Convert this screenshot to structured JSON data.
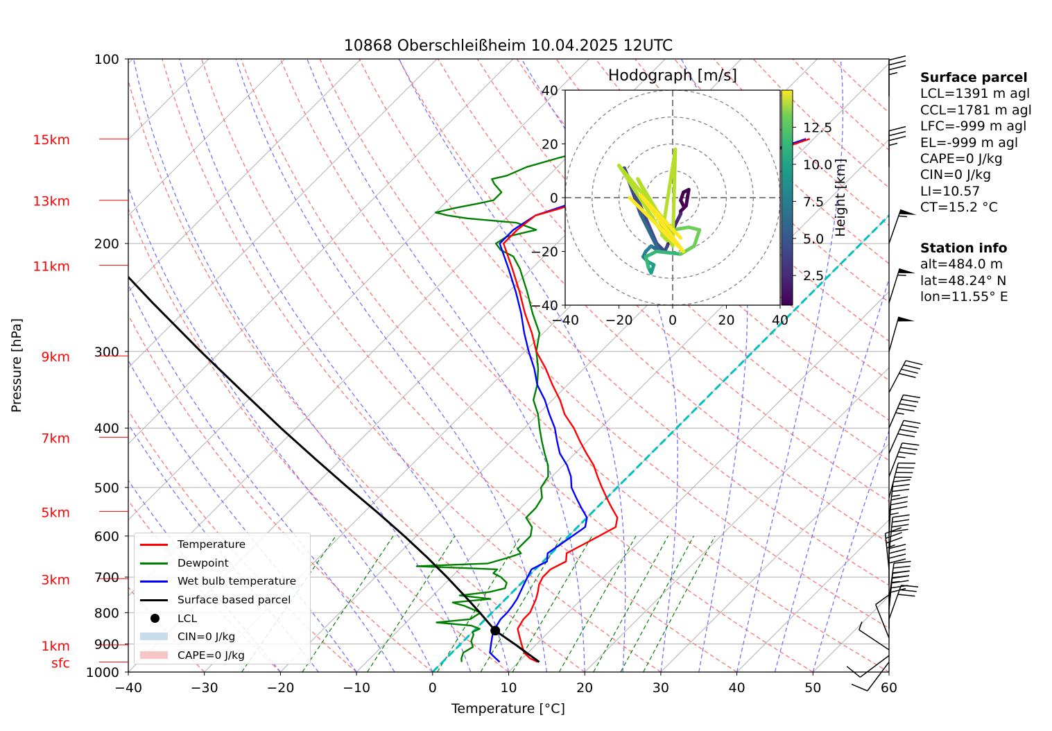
{
  "title": "10868 Oberschleißheim 10.04.2025 12UTC",
  "xlabel": "Temperature [°C]",
  "ylabel": "Pressure [hPa]",
  "colors": {
    "temperature": "#ff0000",
    "dewpoint": "#008000",
    "wetbulb": "#0000ff",
    "parcel": "#000000",
    "height_labels": "#ff0000",
    "dry_adiabat": "#ff7070",
    "moist_adiabat": "#7070ff",
    "mixing_ratio": "#008000",
    "freezing_line": "#00c0c0",
    "cin": "#c8dcea",
    "cape": "#f6c6c6"
  },
  "height_labels": [
    {
      "label": "15km",
      "p": 135
    },
    {
      "label": "13km",
      "p": 170
    },
    {
      "label": "11km",
      "p": 217
    },
    {
      "label": "9km",
      "p": 305
    },
    {
      "label": "7km",
      "p": 414
    },
    {
      "label": "5km",
      "p": 547
    },
    {
      "label": "3km",
      "p": 704
    },
    {
      "label": "1km",
      "p": 903
    },
    {
      "label": "sfc",
      "p": 963
    }
  ],
  "legend": {
    "temperature": "Temperature",
    "dewpoint": "Dewpoint",
    "wetbulb": "Wet bulb temperature",
    "parcel": "Surface based parcel",
    "lcl": "LCL",
    "cin": "CIN=0 J/kg",
    "cape": "CAPE=0 J/kg"
  },
  "surface_parcel": {
    "heading": "Surface parcel",
    "lines": [
      "LCL=1391 m agl",
      "CCL=1781 m agl",
      "LFC=-999 m agl",
      "EL=-999 m agl",
      "CAPE=0 J/kg",
      "CIN=0 J/kg",
      "LI=10.57",
      "CT=15.2 °C"
    ]
  },
  "station_info": {
    "heading": "Station info",
    "lines": [
      "alt=484.0 m",
      "lat=48.24° N",
      "lon=11.55° E"
    ]
  },
  "hodograph": {
    "title": "Hodograph [m/s]",
    "colorbar_label": "Height [km]",
    "colorbar_ticks": [
      "2.5",
      "5.0",
      "7.5",
      "10.0",
      "12.5"
    ],
    "range": [
      -40,
      40
    ],
    "ticks": [
      "−40",
      "−20",
      "0",
      "20",
      "40"
    ],
    "colormap": "viridis"
  },
  "chart_data": {
    "type": "line",
    "title": "10868 Oberschleißheim 10.04.2025 12UTC",
    "xlabel": "Temperature [°C]",
    "ylabel": "Pressure [hPa]",
    "xlim": [
      -40,
      60
    ],
    "ylim": [
      1000,
      100
    ],
    "y_scale": "log",
    "skew": "temperature isotherms skewed 45°",
    "x_ticks": [
      "−40",
      "−30",
      "−20",
      "−10",
      "0",
      "10",
      "20",
      "30",
      "40",
      "50",
      "60"
    ],
    "y_ticks": [
      "100",
      "200",
      "300",
      "400",
      "500",
      "600",
      "700",
      "800",
      "900",
      "1000"
    ],
    "legend_position": "lower-left",
    "series": [
      {
        "name": "Temperature",
        "color": "#ff0000",
        "points": [
          [
            963,
            12.5
          ],
          [
            950,
            11
          ],
          [
            930,
            9.5
          ],
          [
            900,
            8
          ],
          [
            870,
            6.5
          ],
          [
            850,
            5.5
          ],
          [
            820,
            5
          ],
          [
            800,
            5
          ],
          [
            780,
            4.5
          ],
          [
            760,
            4
          ],
          [
            740,
            3.3
          ],
          [
            720,
            2.5
          ],
          [
            700,
            2
          ],
          [
            680,
            2
          ],
          [
            660,
            3
          ],
          [
            640,
            2
          ],
          [
            620,
            3
          ],
          [
            600,
            4
          ],
          [
            580,
            5
          ],
          [
            560,
            4
          ],
          [
            540,
            2
          ],
          [
            520,
            0
          ],
          [
            500,
            -2
          ],
          [
            480,
            -4
          ],
          [
            460,
            -6
          ],
          [
            440,
            -8.5
          ],
          [
            420,
            -11
          ],
          [
            400,
            -13.5
          ],
          [
            380,
            -16.5
          ],
          [
            360,
            -19
          ],
          [
            340,
            -22
          ],
          [
            320,
            -25
          ],
          [
            300,
            -28.5
          ],
          [
            280,
            -31.5
          ],
          [
            260,
            -35
          ],
          [
            240,
            -38.5
          ],
          [
            220,
            -42.5
          ],
          [
            200,
            -47
          ],
          [
            190,
            -47
          ],
          [
            180,
            -46.5
          ],
          [
            175,
            -44
          ],
          [
            170,
            -42
          ],
          [
            165,
            -39
          ],
          [
            160,
            -38
          ],
          [
            155,
            -34
          ],
          [
            150,
            -32
          ],
          [
            145,
            -27
          ],
          [
            140,
            -23
          ],
          [
            136,
            -21
          ],
          [
            135,
            -20.5
          ]
        ]
      },
      {
        "name": "Dewpoint",
        "color": "#008000",
        "points": [
          [
            963,
            2.5
          ],
          [
            950,
            2
          ],
          [
            930,
            1.5
          ],
          [
            910,
            2
          ],
          [
            890,
            1
          ],
          [
            870,
            0.5
          ],
          [
            860,
            0
          ],
          [
            850,
            0.5
          ],
          [
            840,
            -1
          ],
          [
            830,
            -6
          ],
          [
            820,
            -2
          ],
          [
            800,
            -1.5
          ],
          [
            790,
            -3
          ],
          [
            780,
            -4.5
          ],
          [
            770,
            -6.5
          ],
          [
            760,
            -2
          ],
          [
            750,
            -6.5
          ],
          [
            740,
            -3
          ],
          [
            730,
            -1.5
          ],
          [
            715,
            -2
          ],
          [
            700,
            -3.5
          ],
          [
            690,
            -5
          ],
          [
            680,
            -5
          ],
          [
            672,
            -16
          ],
          [
            665,
            -7
          ],
          [
            650,
            -5
          ],
          [
            640,
            -4
          ],
          [
            630,
            -5
          ],
          [
            620,
            -5
          ],
          [
            600,
            -5
          ],
          [
            580,
            -6
          ],
          [
            560,
            -8
          ],
          [
            540,
            -8
          ],
          [
            520,
            -8.5
          ],
          [
            500,
            -10
          ],
          [
            480,
            -10.5
          ],
          [
            460,
            -12
          ],
          [
            440,
            -14
          ],
          [
            420,
            -16
          ],
          [
            400,
            -18
          ],
          [
            380,
            -20
          ],
          [
            360,
            -22.5
          ],
          [
            340,
            -24
          ],
          [
            320,
            -26
          ],
          [
            300,
            -28.5
          ],
          [
            280,
            -30.5
          ],
          [
            260,
            -34
          ],
          [
            240,
            -37.5
          ],
          [
            220,
            -41.5
          ],
          [
            210,
            -44
          ],
          [
            205,
            -46.5
          ],
          [
            200,
            -48
          ],
          [
            195,
            -47.5
          ],
          [
            190,
            -44.5
          ],
          [
            185,
            -48
          ],
          [
            182,
            -55
          ],
          [
            180,
            -58
          ],
          [
            178,
            -60
          ],
          [
            175,
            -58
          ],
          [
            172,
            -55.5
          ],
          [
            170,
            -54
          ],
          [
            165,
            -54
          ],
          [
            160,
            -56
          ],
          [
            157,
            -57
          ],
          [
            155,
            -55.5
          ],
          [
            150,
            -54
          ],
          [
            145,
            -51
          ],
          [
            140,
            -47.5
          ],
          [
            135,
            -45
          ]
        ]
      },
      {
        "name": "Wet bulb temperature",
        "color": "#0000ff",
        "points": [
          [
            963,
            7.5
          ],
          [
            950,
            6.5
          ],
          [
            930,
            5
          ],
          [
            900,
            4
          ],
          [
            870,
            3
          ],
          [
            850,
            2.5
          ],
          [
            820,
            2
          ],
          [
            800,
            2
          ],
          [
            780,
            1.8
          ],
          [
            760,
            1.5
          ],
          [
            740,
            1
          ],
          [
            720,
            0.5
          ],
          [
            700,
            0
          ],
          [
            680,
            -0.5
          ],
          [
            660,
            0.5
          ],
          [
            640,
            -0.5
          ],
          [
            620,
            0
          ],
          [
            600,
            0.5
          ],
          [
            580,
            1
          ],
          [
            560,
            0
          ],
          [
            540,
            -2
          ],
          [
            520,
            -4
          ],
          [
            500,
            -6
          ],
          [
            480,
            -7.5
          ],
          [
            460,
            -9.5
          ],
          [
            440,
            -12
          ],
          [
            420,
            -14
          ],
          [
            400,
            -16
          ],
          [
            380,
            -18.5
          ],
          [
            360,
            -21
          ],
          [
            340,
            -24
          ],
          [
            320,
            -26.5
          ],
          [
            300,
            -29.5
          ],
          [
            280,
            -32.5
          ],
          [
            260,
            -35.5
          ],
          [
            240,
            -39
          ],
          [
            220,
            -43
          ],
          [
            200,
            -47.5
          ],
          [
            190,
            -47.5
          ],
          [
            180,
            -46.5
          ],
          [
            175,
            -44.5
          ],
          [
            170,
            -42.5
          ],
          [
            165,
            -39.5
          ],
          [
            160,
            -38.5
          ],
          [
            155,
            -34.5
          ],
          [
            150,
            -32.5
          ],
          [
            145,
            -27.5
          ],
          [
            140,
            -23.5
          ],
          [
            136,
            -21.5
          ],
          [
            135,
            -21
          ]
        ]
      },
      {
        "name": "Surface based parcel",
        "color": "#000000",
        "points": [
          [
            963,
            12.7
          ],
          [
            900,
            7.1
          ],
          [
            856,
            2.8
          ],
          [
            800,
            -1.6
          ],
          [
            750,
            -5.9
          ],
          [
            700,
            -10.6
          ],
          [
            650,
            -15.8
          ],
          [
            600,
            -21.6
          ],
          [
            550,
            -28.1
          ],
          [
            500,
            -35.4
          ],
          [
            450,
            -43.3
          ],
          [
            400,
            -52
          ],
          [
            350,
            -61.6
          ],
          [
            300,
            -72.6
          ],
          [
            250,
            -85.3
          ],
          [
            200,
            -100.5
          ],
          [
            170,
            -111
          ]
        ]
      }
    ],
    "lcl": {
      "p": 856,
      "t": 2.8
    },
    "freezing_line": {
      "t": 0
    },
    "wind_barbs": [
      {
        "p": 963,
        "u": 3,
        "v": 4
      },
      {
        "p": 940,
        "u": 4,
        "v": 3
      },
      {
        "p": 920,
        "u": 3,
        "v": -2
      },
      {
        "p": 880,
        "u": 2,
        "v": -5
      },
      {
        "p": 850,
        "u": 0,
        "v": -4
      },
      {
        "p": 820,
        "u": -5,
        "v": -14
      },
      {
        "p": 790,
        "u": -2,
        "v": -20
      },
      {
        "p": 760,
        "u": -3,
        "v": -22
      },
      {
        "p": 720,
        "u": 0,
        "v": -21
      },
      {
        "p": 680,
        "u": 2,
        "v": -19
      },
      {
        "p": 640,
        "u": -2,
        "v": -20
      },
      {
        "p": 600,
        "u": -1,
        "v": -19
      },
      {
        "p": 560,
        "u": -2,
        "v": -17
      },
      {
        "p": 520,
        "u": -5,
        "v": -19
      },
      {
        "p": 480,
        "u": -7,
        "v": -18
      },
      {
        "p": 440,
        "u": -8,
        "v": -18
      },
      {
        "p": 400,
        "u": -9,
        "v": -21
      },
      {
        "p": 350,
        "u": -10,
        "v": -19
      },
      {
        "p": 300,
        "u": -7,
        "v": -25
      },
      {
        "p": 250,
        "u": -8,
        "v": -26
      },
      {
        "p": 200,
        "u": -9,
        "v": -26
      },
      {
        "p": 150,
        "u": 0,
        "v": -18
      },
      {
        "p": 115,
        "u": 0,
        "v": -17
      }
    ]
  },
  "hodograph_data": {
    "xlim": [
      -40,
      40
    ],
    "ylim": [
      -40,
      40
    ],
    "rings": [
      10,
      20,
      30,
      40
    ],
    "height_range_km": [
      0.5,
      15
    ],
    "points": [
      {
        "u": 4,
        "v": -3,
        "h": 0.5
      },
      {
        "u": 3,
        "v": -1,
        "h": 0.8
      },
      {
        "u": 4,
        "v": 2,
        "h": 1.0
      },
      {
        "u": 6,
        "v": 3,
        "h": 1.1
      },
      {
        "u": 5,
        "v": -3,
        "h": 1.3
      },
      {
        "u": 3,
        "v": -5,
        "h": 1.6
      },
      {
        "u": 3,
        "v": -6,
        "h": 1.9
      },
      {
        "u": 1,
        "v": -10,
        "h": 2.5
      },
      {
        "u": -2,
        "v": -18,
        "h": 3.0
      },
      {
        "u": -3,
        "v": -20,
        "h": 3.5
      },
      {
        "u": -6,
        "v": -17,
        "h": 4.0
      },
      {
        "u": -18,
        "v": 11,
        "h": 4.2
      },
      {
        "u": -12,
        "v": -6,
        "h": 4.8
      },
      {
        "u": -5,
        "v": -20,
        "h": 5.5
      },
      {
        "u": -8,
        "v": -18,
        "h": 6.0
      },
      {
        "u": -10,
        "v": -20,
        "h": 6.5
      },
      {
        "u": -11,
        "v": -22,
        "h": 7.0
      },
      {
        "u": -9,
        "v": -24,
        "h": 7.5
      },
      {
        "u": -7,
        "v": -25,
        "h": 8.0
      },
      {
        "u": -8,
        "v": -28,
        "h": 8.5
      },
      {
        "u": -9,
        "v": -26,
        "h": 9.0
      },
      {
        "u": -10,
        "v": -22,
        "h": 9.5
      },
      {
        "u": -6,
        "v": -20,
        "h": 10.0
      },
      {
        "u": 3,
        "v": -21,
        "h": 10.5
      },
      {
        "u": 8,
        "v": -18,
        "h": 11.0
      },
      {
        "u": 10,
        "v": -12,
        "h": 11.5
      },
      {
        "u": 6,
        "v": -11,
        "h": 11.8
      },
      {
        "u": 0,
        "v": -12,
        "h": 12.0
      },
      {
        "u": -20,
        "v": 12,
        "h": 12.2
      },
      {
        "u": -2,
        "v": -16,
        "h": 12.4
      },
      {
        "u": -4,
        "v": -14,
        "h": 12.6
      },
      {
        "u": 1,
        "v": 18,
        "h": 12.8
      },
      {
        "u": 0,
        "v": -18,
        "h": 13.0
      },
      {
        "u": -13,
        "v": 7,
        "h": 13.2
      },
      {
        "u": 2,
        "v": -18,
        "h": 13.5
      },
      {
        "u": -16,
        "v": 0,
        "h": 13.8
      },
      {
        "u": 4,
        "v": -20,
        "h": 14.0
      },
      {
        "u": -12,
        "v": 1,
        "h": 14.3
      },
      {
        "u": 3,
        "v": -15,
        "h": 14.7
      }
    ]
  }
}
